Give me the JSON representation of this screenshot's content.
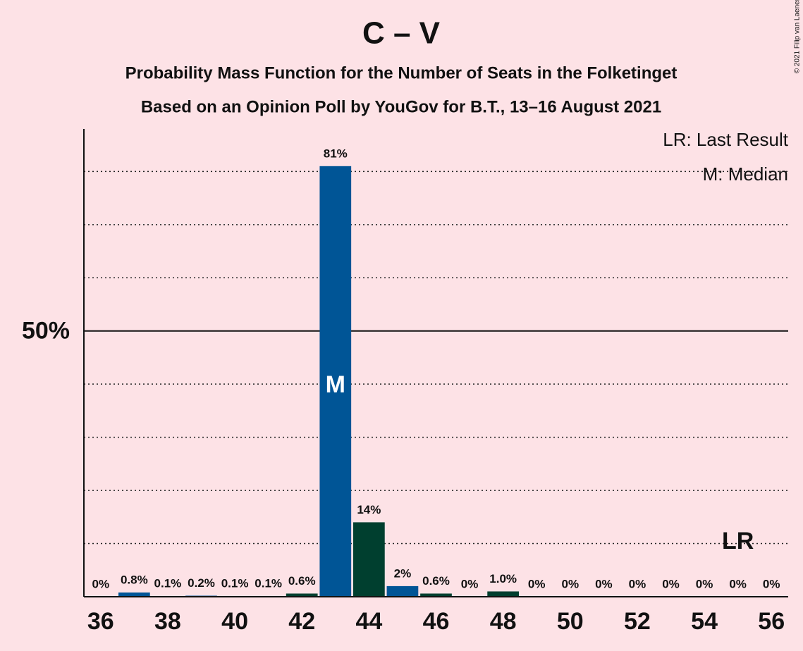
{
  "chart_data": {
    "type": "bar",
    "title": "C – V",
    "subtitle": "Probability Mass Function for the Number of Seats in the Folketinget",
    "subtitle2": "Based on an Opinion Poll by YouGov for B.T., 13–16 August 2021",
    "copyright": "© 2021 Filip van Laenen",
    "x": [
      36,
      37,
      38,
      39,
      40,
      41,
      42,
      43,
      44,
      45,
      46,
      47,
      48,
      49,
      50,
      51,
      52,
      53,
      54,
      55,
      56
    ],
    "values": [
      0,
      0.8,
      0.1,
      0.2,
      0.1,
      0.1,
      0.6,
      81,
      14,
      2,
      0.6,
      0,
      1.0,
      0,
      0,
      0,
      0,
      0,
      0,
      0,
      0
    ],
    "value_labels": [
      "0%",
      "0.8%",
      "0.1%",
      "0.2%",
      "0.1%",
      "0.1%",
      "0.6%",
      "81%",
      "14%",
      "2%",
      "0.6%",
      "0%",
      "1.0%",
      "0%",
      "0%",
      "0%",
      "0%",
      "0%",
      "0%",
      "0%",
      "0%"
    ],
    "colors": [
      "#003f2f",
      "#005596",
      "#003f2f",
      "#005596",
      "#003f2f",
      "#005596",
      "#003f2f",
      "#005596",
      "#003f2f",
      "#005596",
      "#003f2f",
      "#005596",
      "#003f2f",
      "#005596",
      "#003f2f",
      "#005596",
      "#003f2f",
      "#005596",
      "#003f2f",
      "#005596",
      "#003f2f"
    ],
    "xlim": [
      35.5,
      56.5
    ],
    "xticks": [
      36,
      38,
      40,
      42,
      44,
      46,
      48,
      50,
      52,
      54,
      56
    ],
    "ylim": [
      0,
      88
    ],
    "yticks": [
      {
        "value": 50,
        "label": "50%"
      }
    ],
    "grid_lines": [
      10,
      20,
      30,
      40,
      60,
      70,
      80
    ],
    "median": {
      "value": 43,
      "label": "M"
    },
    "last_result": {
      "value": 55,
      "label": "LR"
    },
    "legend": [
      "LR: Last Result",
      "M: Median"
    ]
  }
}
